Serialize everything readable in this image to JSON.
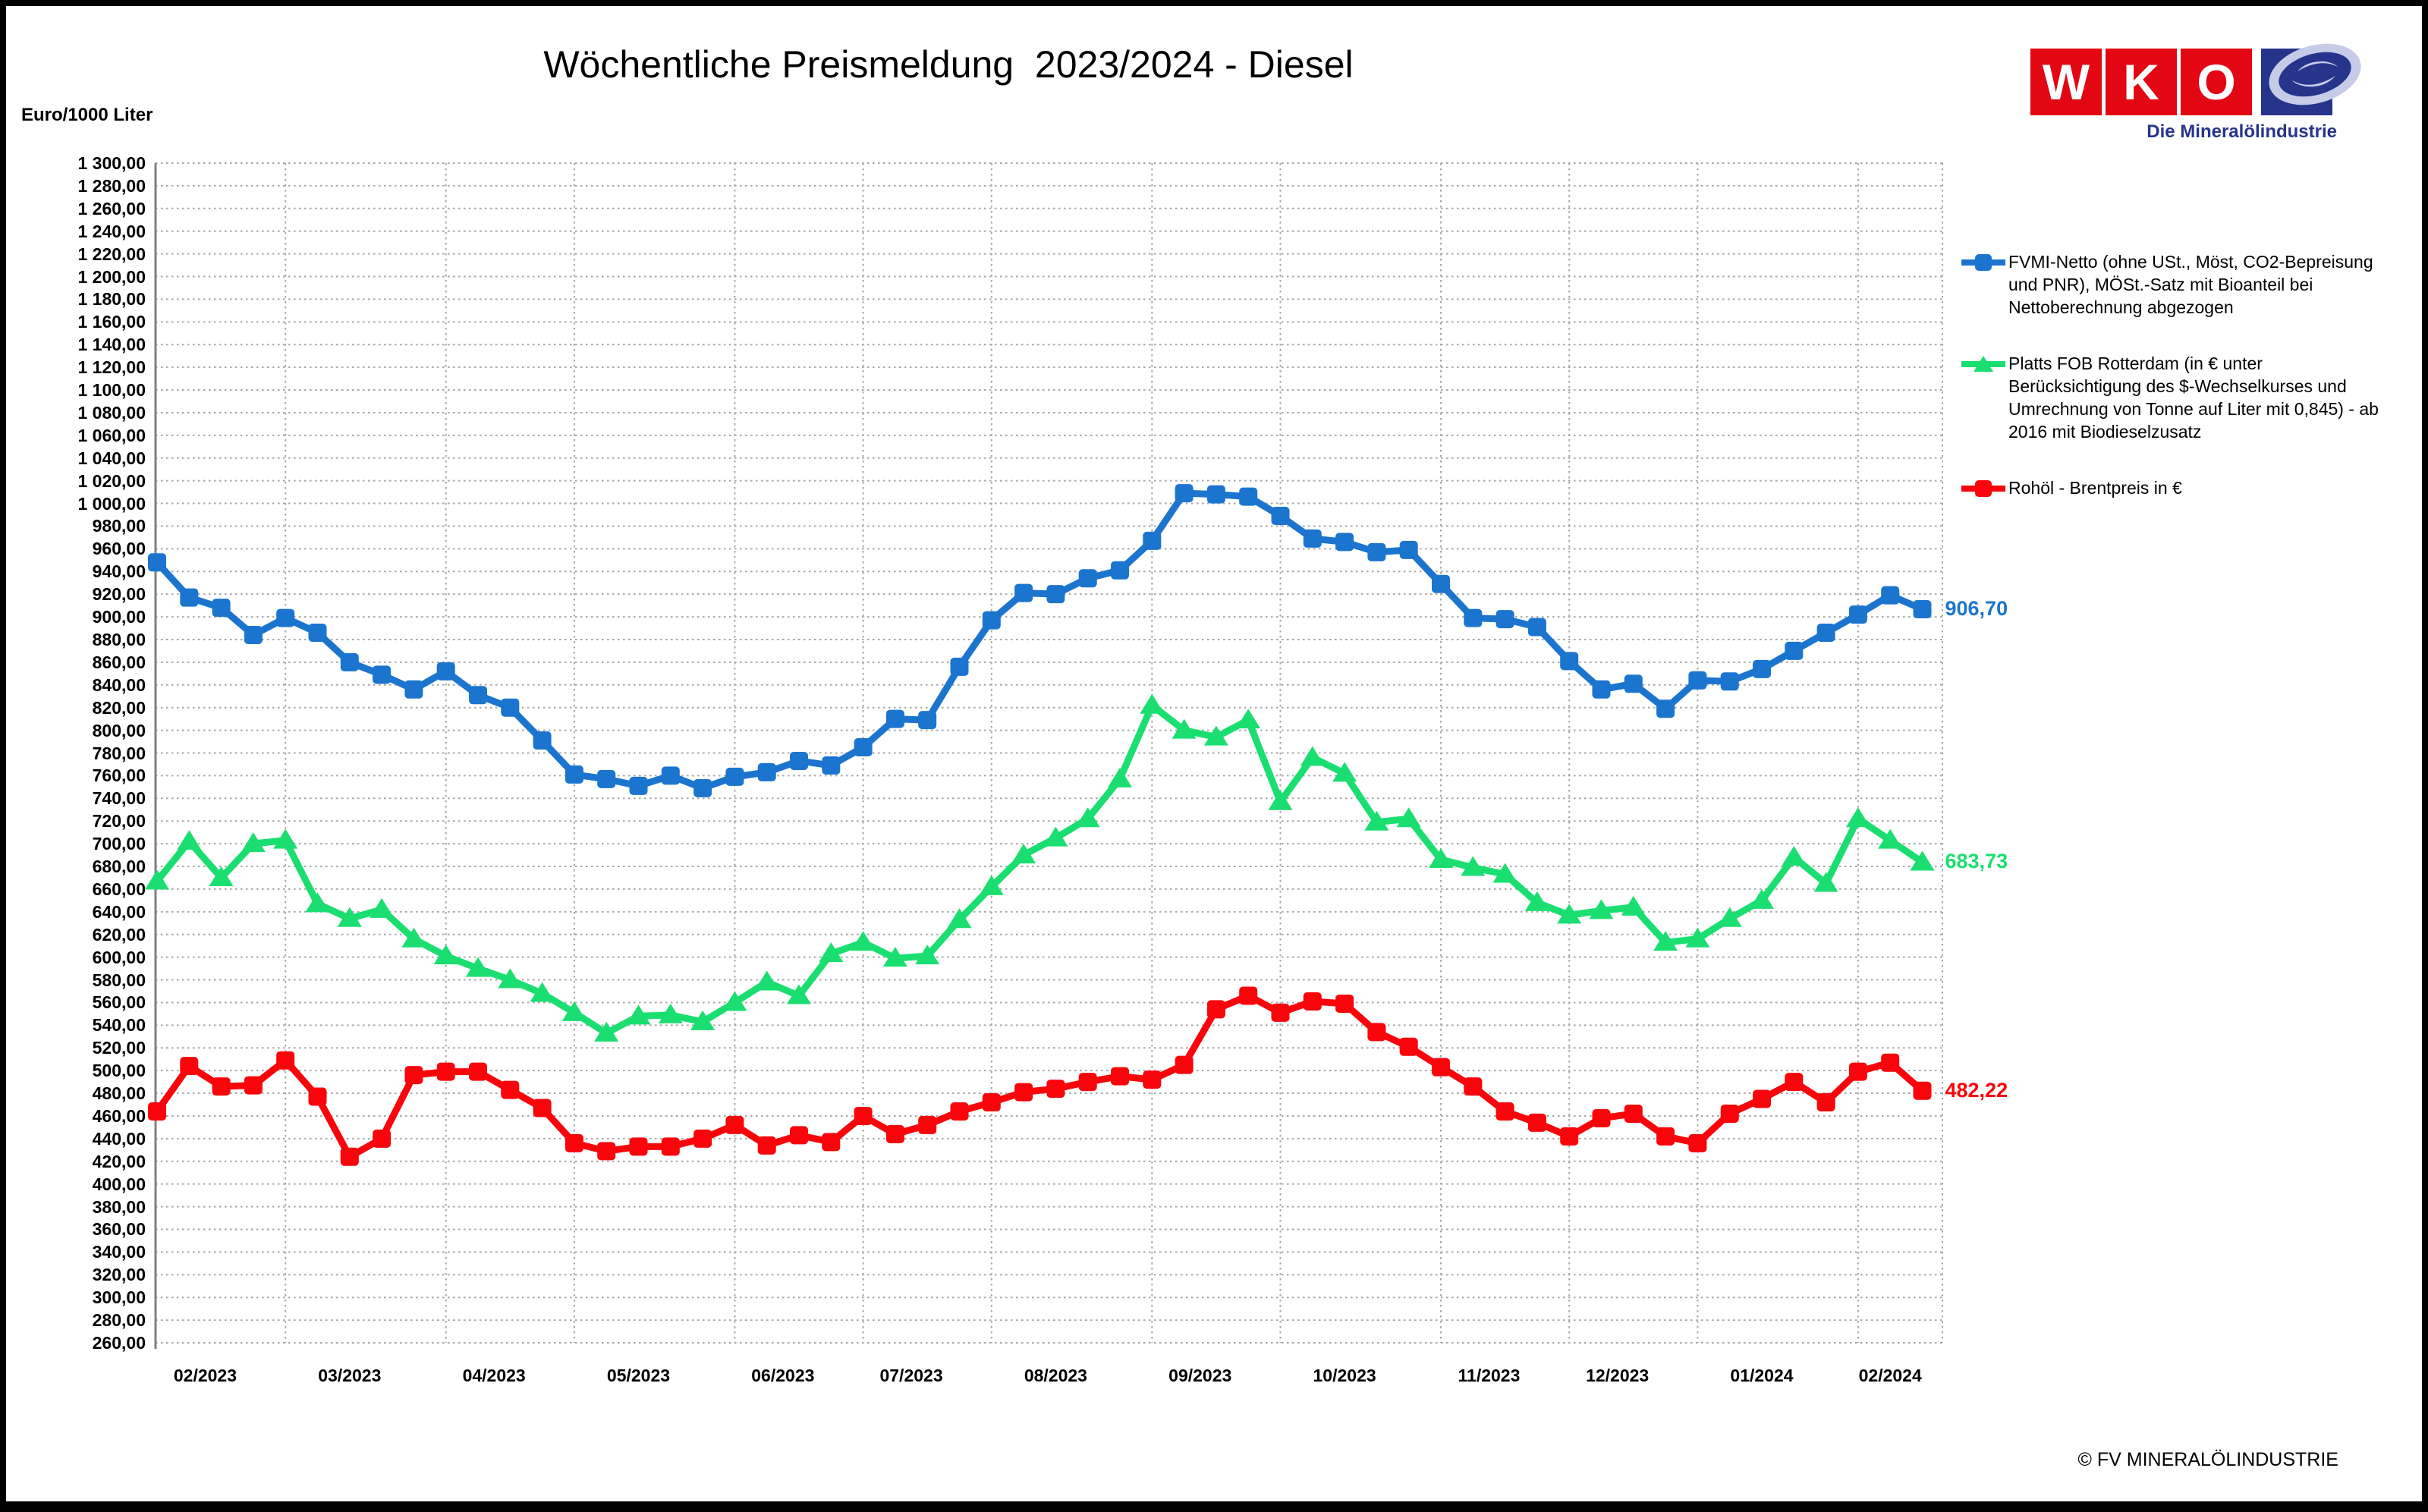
{
  "page": {
    "title": "Wöchentliche Preismeldung  2023/2024 - Diesel",
    "y_unit_label": "Euro/1000 Liter",
    "copyright": "© FV MINERALÖLINDUSTRIE"
  },
  "logo": {
    "letters": [
      "W",
      "K",
      "O"
    ],
    "tagline": "Die Mineralölindustrie",
    "red": "#E30613",
    "blue": "#26348C",
    "ellipse_light": "#C6CBE7"
  },
  "chart_data": {
    "type": "line",
    "title": "Wöchentliche Preismeldung  2023/2024 - Diesel",
    "ylabel": "Euro/1000 Liter",
    "y_axis": {
      "min": 260,
      "max": 1300,
      "step": 20,
      "tick_format": "de: space thousands, comma decimals, 2 places"
    },
    "x_axis": {
      "weeks_total": 56,
      "month_labels": [
        "02/2023",
        "03/2023",
        "04/2023",
        "05/2023",
        "06/2023",
        "07/2023",
        "08/2023",
        "09/2023",
        "10/2023",
        "11/2023",
        "12/2023",
        "01/2024",
        "02/2024"
      ],
      "month_start_weeks": [
        0,
        4,
        9,
        13,
        18,
        22,
        26,
        31,
        35,
        40,
        44,
        48,
        53
      ]
    },
    "grid": true,
    "legend_position": "right",
    "gridline_color": "#a6a6a6",
    "axis_color": "#808080",
    "series": [
      {
        "name": "FVMI-Netto (ohne USt., Möst, CO2-Bepreisung und PNR), MÖSt.-Satz mit Bioanteil bei Nettoberechnung abgezogen",
        "color": "#1B75CE",
        "marker": "square",
        "end_label": "906,70",
        "values": [
          948,
          917,
          908,
          884,
          899,
          886,
          860,
          849,
          836,
          852,
          831,
          820,
          791,
          761,
          757,
          751,
          760,
          749,
          759,
          763,
          773,
          769,
          785,
          810,
          809,
          856,
          897,
          921,
          920,
          934,
          941,
          967,
          1009,
          1008,
          1006,
          989,
          969,
          966,
          957,
          959,
          929,
          899,
          898,
          891,
          861,
          836,
          841,
          819,
          844,
          843,
          854,
          870,
          886,
          902,
          919,
          906.7
        ]
      },
      {
        "name": "Platts FOB Rotterdam (in € unter Berücksichtigung des $-Wechselkurses und Umrechnung von Tonne auf Liter mit 0,845) - ab 2016 mit Biodieselzusatz",
        "color": "#1ADF70",
        "marker": "triangle",
        "end_label": "683,73",
        "values": [
          667,
          702,
          670,
          700,
          703,
          647,
          634,
          642,
          616,
          601,
          590,
          580,
          568,
          551,
          533,
          548,
          549,
          543,
          560,
          578,
          566,
          603,
          613,
          599,
          601,
          633,
          662,
          690,
          705,
          722,
          757,
          822,
          800,
          794,
          809,
          737,
          776,
          762,
          719,
          722,
          686,
          679,
          673,
          648,
          637,
          641,
          644,
          613,
          616,
          634,
          650,
          688,
          665,
          722,
          703,
          683.73
        ]
      },
      {
        "name": "Rohöl - Brentpreis in €",
        "color": "#F9040A",
        "marker": "square",
        "end_label": "482,22",
        "values": [
          464,
          504,
          486,
          487,
          509,
          477,
          424,
          440,
          496,
          499,
          499,
          483,
          467,
          436,
          429,
          433,
          433,
          440,
          452,
          434,
          443,
          437,
          460,
          444,
          452,
          464,
          472,
          481,
          484,
          490,
          495,
          492,
          505,
          554,
          566,
          551,
          561,
          559,
          534,
          521,
          503,
          486,
          464,
          454,
          442,
          458,
          462,
          442,
          436,
          462,
          475,
          490,
          472,
          499,
          507,
          482.22
        ]
      }
    ]
  }
}
